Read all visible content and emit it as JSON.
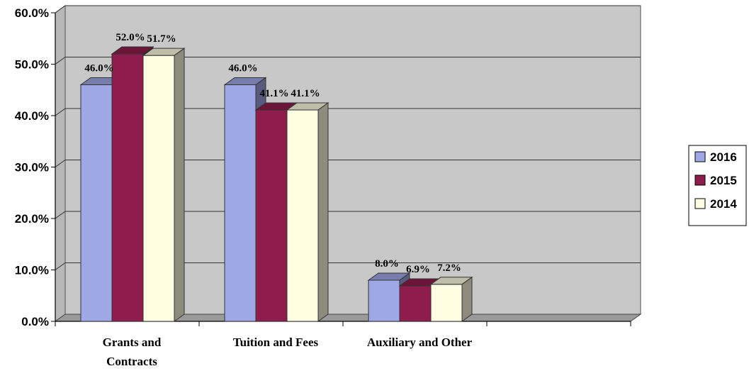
{
  "chart_data": {
    "type": "bar",
    "categories": [
      "Grants and Contracts",
      "Tuition and Fees",
      "Auxiliary and Other"
    ],
    "category_lines": [
      [
        "Grants and",
        "Contracts"
      ],
      [
        "Tuition and Fees"
      ],
      [
        "Auxiliary and Other"
      ]
    ],
    "series": [
      {
        "name": "2016",
        "values": [
          46.0,
          46.0,
          8.0
        ],
        "labels": [
          "46.0%",
          "46.0%",
          "8.0%"
        ]
      },
      {
        "name": "2015",
        "values": [
          52.0,
          41.1,
          6.9
        ],
        "labels": [
          "52.0%",
          "41.1%",
          "6.9%"
        ]
      },
      {
        "name": "2014",
        "values": [
          51.7,
          41.1,
          7.2
        ],
        "labels": [
          "51.7%",
          "41.1%",
          "7.2%"
        ]
      }
    ],
    "ylim": [
      0,
      60
    ],
    "yticks": [
      "0.0%",
      "10.0%",
      "20.0%",
      "30.0%",
      "40.0%",
      "50.0%",
      "60.0%"
    ],
    "grid": true,
    "legend_position": "right",
    "colors": {
      "2016": "#9fa8e6",
      "2015": "#8e1c4c",
      "2014": "#fffde2",
      "wall": "#c8c8c8",
      "floor": "#9a9a9a"
    }
  }
}
